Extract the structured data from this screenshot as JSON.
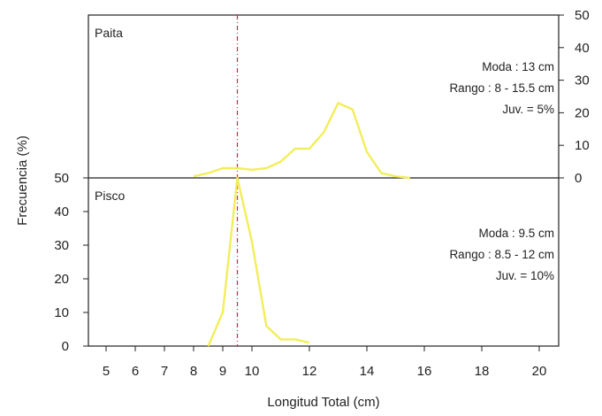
{
  "chart_data": [
    {
      "panel": "top",
      "type": "line",
      "label": "Paita",
      "ylabel": "Frecuencia (%)",
      "xlabel": "Longitud Total (cm)",
      "xlim": [
        4.5,
        20.5
      ],
      "ylim": [
        0,
        50
      ],
      "yaxis_side": "right",
      "yticks": [
        0,
        10,
        20,
        30,
        40,
        50
      ],
      "xticks": [
        5,
        6,
        7,
        8,
        9,
        10,
        12,
        14,
        16,
        18,
        20
      ],
      "series": [
        {
          "color": "#f2ee5a",
          "x": [
            8,
            8.5,
            9,
            9.5,
            10,
            10.5,
            11,
            11.5,
            12,
            12.5,
            13,
            13.5,
            14,
            14.5,
            15,
            15.5
          ],
          "y": [
            0.5,
            1.5,
            3,
            3,
            2.5,
            3,
            5,
            9,
            9,
            14,
            23,
            21,
            8,
            1.5,
            0.5,
            0
          ]
        }
      ],
      "annotations": [
        "Moda : 13 cm",
        "Rango : 8 - 15.5 cm",
        "Juv. = 5%"
      ]
    },
    {
      "panel": "bottom",
      "type": "line",
      "label": "Pisco",
      "ylabel": "Frecuencia (%)",
      "xlabel": "Longitud Total (cm)",
      "xlim": [
        4.5,
        20.5
      ],
      "ylim": [
        0,
        50
      ],
      "yaxis_side": "left",
      "yticks": [
        0,
        10,
        20,
        30,
        40,
        50
      ],
      "xticks": [
        5,
        6,
        7,
        8,
        9,
        10,
        12,
        14,
        16,
        18,
        20
      ],
      "series": [
        {
          "color": "#f2ee5a",
          "x": [
            8.5,
            9,
            9.5,
            10,
            10.5,
            11,
            11.5,
            12
          ],
          "y": [
            0,
            10,
            50,
            31,
            6,
            2,
            2,
            1
          ]
        }
      ],
      "annotations": [
        "Moda : 9.5 cm",
        "Rango : 8.5 - 12 cm",
        "Juv. = 10%"
      ]
    }
  ],
  "reference_line": {
    "x": 9.5,
    "color": "#e0204a"
  }
}
